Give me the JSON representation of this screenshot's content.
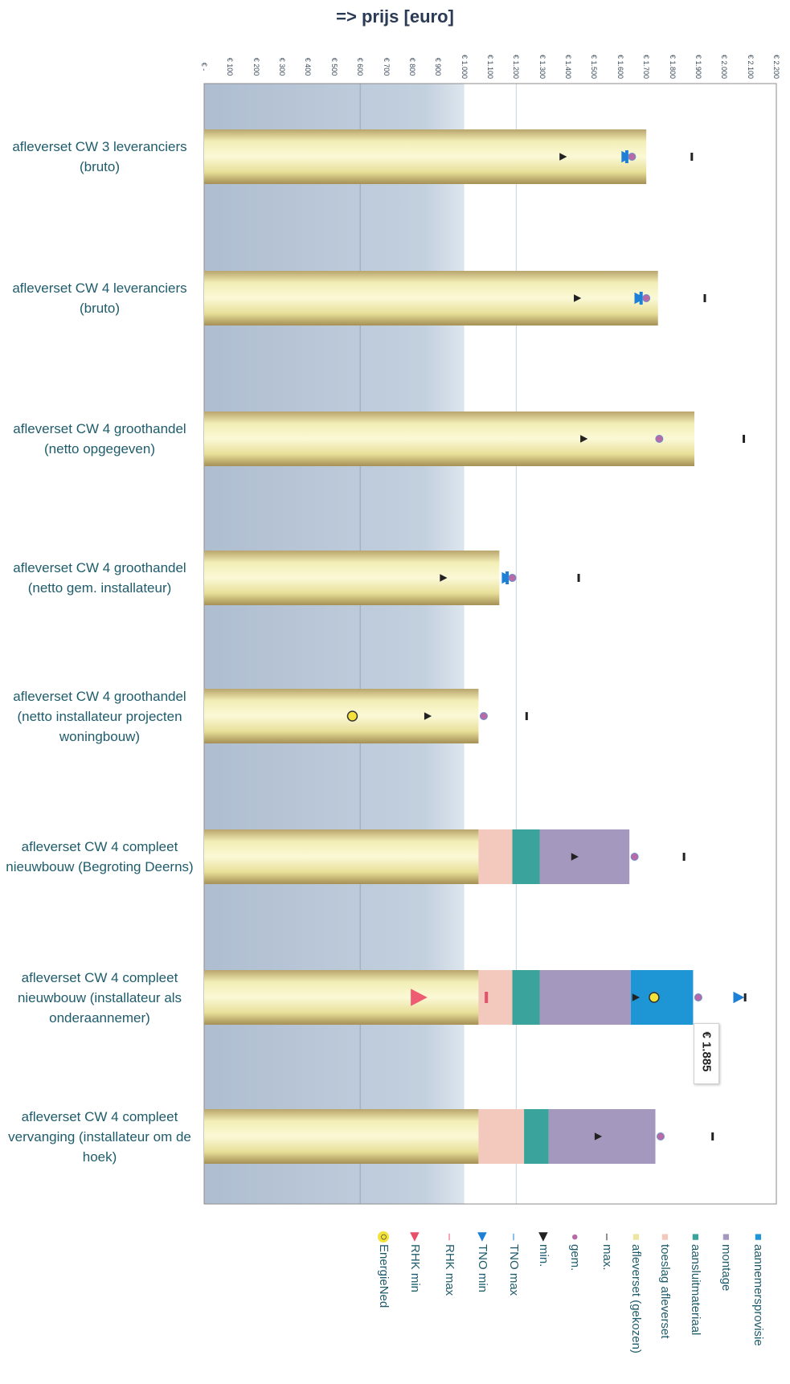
{
  "chart_data": {
    "type": "bar",
    "title": "=> prijs [euro]",
    "x_ticks": [
      "€ -",
      "€ 100",
      "€ 200",
      "€ 300",
      "€ 400",
      "€ 500",
      "€ 600",
      "€ 700",
      "€ 800",
      "€ 900",
      "€ 1.000",
      "€ 1.100",
      "€ 1.200",
      "€ 1.300",
      "€ 1.400",
      "€ 1.500",
      "€ 1.600",
      "€ 1.700",
      "€ 1.800",
      "€ 1.900",
      "€ 2.000",
      "€ 2.100",
      "€ 2.200"
    ],
    "xlim": [
      0,
      2200
    ],
    "categories": [
      "afleverset CW 3 leveranciers (bruto)",
      "afleverset CW 4 leveranciers (bruto)",
      "afleverset CW 4 groothandel (netto opgegeven)",
      "afleverset CW 4 groothandel (netto gem. installateur)",
      "afleverset CW 4 groothandel (netto installateur projecten woningbouw)",
      "afleverset CW 4 compleet nieuwbouw (Begroting Deerns)",
      "afleverset CW 4 compleet nieuwbouw (installateur als onderaannemer)",
      "afleverset CW 4 compleet vervanging (installateur om de hoek)"
    ],
    "series": [
      {
        "name": "afleverset (gekozen)",
        "color": "#ece6a2",
        "values": [
          1700,
          1745,
          1885,
          1135,
          1055,
          1055,
          1055,
          1055
        ]
      },
      {
        "name": "toeslag afleverset",
        "color": "#f2c9bc",
        "values": [
          0,
          0,
          0,
          0,
          0,
          130,
          130,
          175
        ]
      },
      {
        "name": "aansluitmateriaal",
        "color": "#3aa39c",
        "values": [
          0,
          0,
          0,
          0,
          0,
          105,
          105,
          95
        ]
      },
      {
        "name": "montage",
        "color": "#a498be",
        "values": [
          0,
          0,
          0,
          0,
          0,
          345,
          350,
          410
        ]
      },
      {
        "name": "aannemersprovisie",
        "color": "#1e96d6",
        "values": [
          0,
          0,
          0,
          0,
          0,
          0,
          240,
          0
        ]
      }
    ],
    "markers": {
      "max": [
        1875,
        1925,
        2075,
        1440,
        1240,
        1845,
        2080,
        1955
      ],
      "gem": [
        1645,
        1700,
        1750,
        1185,
        1075,
        1655,
        1900,
        1755
      ],
      "min": [
        1380,
        1435,
        1460,
        920,
        860,
        1425,
        1660,
        1515
      ],
      "TNO max": [
        1625,
        1680,
        null,
        1165,
        null,
        null,
        null,
        null
      ],
      "TNO min": [
        1625,
        1675,
        null,
        1165,
        null,
        null,
        2055,
        null
      ],
      "RHK max": [
        null,
        null,
        null,
        null,
        null,
        null,
        1085,
        null
      ],
      "RHK min": [
        null,
        null,
        null,
        null,
        null,
        null,
        825,
        null
      ],
      "EnergieNed": [
        null,
        null,
        null,
        null,
        570,
        null,
        1730,
        null
      ]
    },
    "legend": [
      {
        "label": "aannemersprovisie",
        "symbol": "square",
        "color": "#1e96d6"
      },
      {
        "label": "montage",
        "symbol": "square",
        "color": "#a498be"
      },
      {
        "label": "aansluitmateriaal",
        "symbol": "square",
        "color": "#3aa39c"
      },
      {
        "label": "toeslag afleverset",
        "symbol": "square",
        "color": "#f2c9bc"
      },
      {
        "label": "afleverset (gekozen)",
        "symbol": "square",
        "color": "#ece6a2"
      },
      {
        "label": "max.",
        "symbol": "dash",
        "color": "#222222"
      },
      {
        "label": "gem.",
        "symbol": "dot",
        "color": "#b86aa6"
      },
      {
        "label": "min.",
        "symbol": "triangle",
        "color": "#222222"
      },
      {
        "label": "TNO max",
        "symbol": "dash",
        "color": "#1e7fd6"
      },
      {
        "label": "TNO min",
        "symbol": "triangle",
        "color": "#1e7fd6"
      },
      {
        "label": "RHK max",
        "symbol": "dash",
        "color": "#e8506a"
      },
      {
        "label": "RHK min",
        "symbol": "triangle",
        "color": "#e8506a"
      },
      {
        "label": "EnergieNed",
        "symbol": "circle",
        "color": "#f2e23a"
      }
    ],
    "annotation": "€ 1.885",
    "legend_position": "bottom",
    "grid": false
  }
}
